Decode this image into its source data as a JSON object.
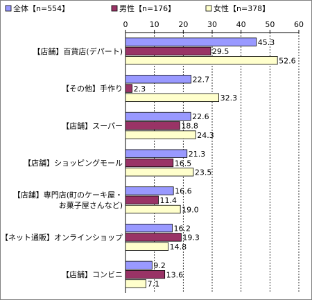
{
  "chart_data": {
    "type": "bar",
    "orientation": "horizontal",
    "xlim": [
      0,
      60
    ],
    "ticks": [
      0,
      10,
      20,
      30,
      40,
      50,
      60
    ],
    "grid": "vertical dashed",
    "legend_placement": "top",
    "categories": [
      [
        "【店舗】百貨店(デパート)"
      ],
      [
        "【その他】手作り"
      ],
      [
        "【店舗】スーパー"
      ],
      [
        "【店舗】ショッピングモール"
      ],
      [
        "【店舗】専門店(町のケーキ屋・",
        "お菓子屋さんなど)"
      ],
      [
        "【ネット通販】オンラインショップ"
      ],
      [
        "【店舗】コンビニ"
      ]
    ],
    "series": [
      {
        "name": "全体【n=554】",
        "color": "#9999ff",
        "values": [
          45.3,
          22.7,
          22.6,
          21.3,
          16.6,
          16.2,
          9.2
        ]
      },
      {
        "name": "男性【n=176】",
        "color": "#993366",
        "values": [
          29.5,
          2.3,
          18.8,
          16.5,
          11.4,
          19.3,
          13.6
        ]
      },
      {
        "name": "女性【n=378】",
        "color": "#ffffcc",
        "values": [
          52.6,
          32.3,
          24.3,
          23.5,
          19.0,
          14.8,
          7.1
        ]
      }
    ]
  }
}
